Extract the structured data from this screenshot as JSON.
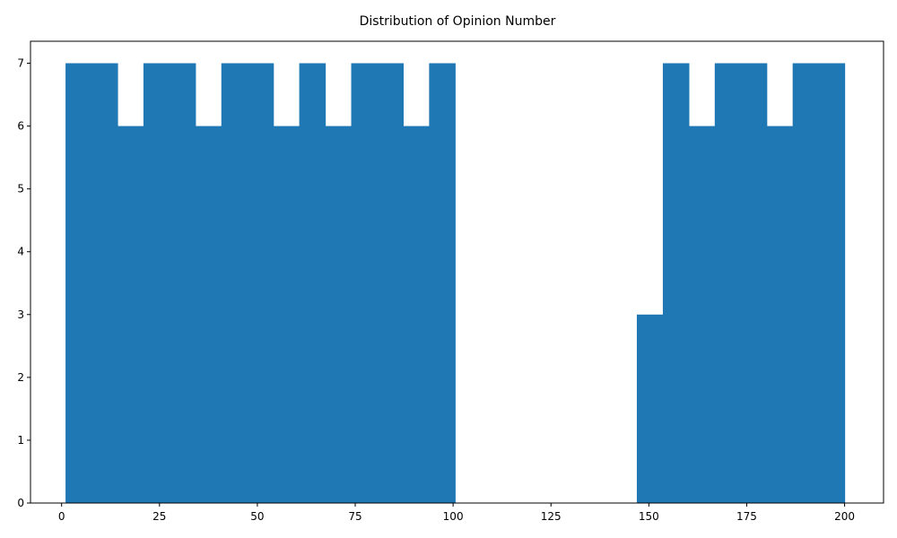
{
  "chart_data": {
    "type": "bar",
    "title": "Distribution of Opinion Number",
    "xlabel": "",
    "ylabel": "",
    "xlim": [
      -7.95,
      209.95
    ],
    "ylim": [
      0,
      7.35
    ],
    "x_ticks": [
      0,
      25,
      50,
      75,
      100,
      125,
      150,
      175,
      200
    ],
    "y_ticks": [
      0,
      1,
      2,
      3,
      4,
      5,
      6,
      7
    ],
    "grid": false,
    "bins": [
      {
        "start": 1.0,
        "end": 7.63,
        "count": 7
      },
      {
        "start": 7.63,
        "end": 14.27,
        "count": 7
      },
      {
        "start": 14.27,
        "end": 20.9,
        "count": 6
      },
      {
        "start": 20.9,
        "end": 27.53,
        "count": 7
      },
      {
        "start": 27.53,
        "end": 34.17,
        "count": 7
      },
      {
        "start": 34.17,
        "end": 40.8,
        "count": 6
      },
      {
        "start": 40.8,
        "end": 47.43,
        "count": 7
      },
      {
        "start": 47.43,
        "end": 54.07,
        "count": 7
      },
      {
        "start": 54.07,
        "end": 60.7,
        "count": 6
      },
      {
        "start": 60.7,
        "end": 67.33,
        "count": 7
      },
      {
        "start": 67.33,
        "end": 73.97,
        "count": 6
      },
      {
        "start": 73.97,
        "end": 80.6,
        "count": 7
      },
      {
        "start": 80.6,
        "end": 87.23,
        "count": 7
      },
      {
        "start": 87.23,
        "end": 93.87,
        "count": 6
      },
      {
        "start": 93.87,
        "end": 100.5,
        "count": 7
      },
      {
        "start": 100.5,
        "end": 107.13,
        "count": 0
      },
      {
        "start": 107.13,
        "end": 113.77,
        "count": 0
      },
      {
        "start": 113.77,
        "end": 120.4,
        "count": 0
      },
      {
        "start": 120.4,
        "end": 127.03,
        "count": 0
      },
      {
        "start": 127.03,
        "end": 133.67,
        "count": 0
      },
      {
        "start": 133.67,
        "end": 140.3,
        "count": 0
      },
      {
        "start": 140.3,
        "end": 146.93,
        "count": 0
      },
      {
        "start": 146.93,
        "end": 153.57,
        "count": 3
      },
      {
        "start": 153.57,
        "end": 160.2,
        "count": 7
      },
      {
        "start": 160.2,
        "end": 166.83,
        "count": 6
      },
      {
        "start": 166.83,
        "end": 173.47,
        "count": 7
      },
      {
        "start": 173.47,
        "end": 180.1,
        "count": 7
      },
      {
        "start": 180.1,
        "end": 186.73,
        "count": 6
      },
      {
        "start": 186.73,
        "end": 193.37,
        "count": 7
      },
      {
        "start": 193.37,
        "end": 200.0,
        "count": 7
      }
    ],
    "bar_color": "#1f77b4"
  }
}
